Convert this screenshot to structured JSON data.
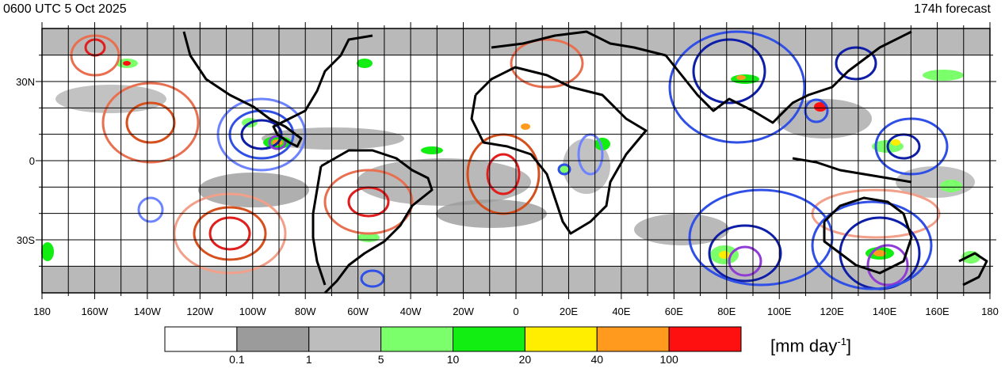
{
  "header": {
    "valid_time": "0600 UTC 5 Oct 2025",
    "forecast_lead": "174h forecast"
  },
  "axes": {
    "lon_labels": [
      "180",
      "160W",
      "140W",
      "120W",
      "100W",
      "80W",
      "60W",
      "40W",
      "20W",
      "0",
      "20E",
      "40E",
      "60E",
      "80E",
      "100E",
      "120E",
      "140E",
      "160E",
      "180"
    ],
    "lat_labels": [
      "30N",
      "0",
      "30S"
    ]
  },
  "colorbar": {
    "colors": [
      "#ffffff",
      "#9b9b9b",
      "#bdbdbd",
      "#7bff6b",
      "#12ee12",
      "#ffee00",
      "#ff9a1f",
      "#ff1010"
    ],
    "labels": [
      "0.1",
      "1",
      "5",
      "10",
      "20",
      "40",
      "100"
    ],
    "units_main": "[mm day",
    "units_exp": "-1",
    "units_close": "]"
  },
  "contours": {
    "positive_colors": [
      "#f3a08a",
      "#e87050",
      "#d6501e",
      "#e01e1e"
    ],
    "negative_colors": [
      "#6e84ff",
      "#2f4fe6",
      "#0e1ea8",
      "#8f3bd6"
    ]
  }
}
